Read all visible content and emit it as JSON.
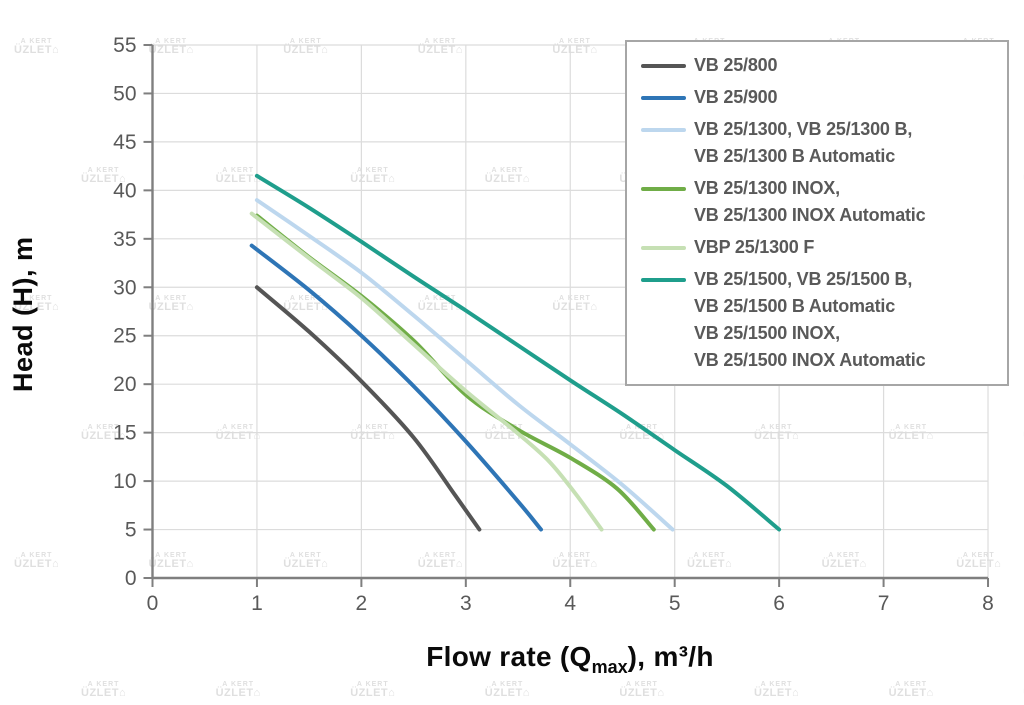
{
  "watermark": {
    "line1": "A KERT",
    "line2": "ÜZLET",
    "glyph": "⌂"
  },
  "axes": {
    "y_title": "Head (H), m",
    "x_title_pre": "Flow rate (Q",
    "x_title_sub": "max",
    "x_title_post": "), m³/h"
  },
  "chart_data": {
    "type": "line",
    "title": "",
    "xlabel": "Flow rate (Q_max), m³/h",
    "ylabel": "Head (H), m",
    "xlim": [
      0,
      8
    ],
    "ylim": [
      0,
      55
    ],
    "x_ticks": [
      0,
      1,
      2,
      3,
      4,
      5,
      6,
      7,
      8
    ],
    "y_ticks": [
      0,
      5,
      10,
      15,
      20,
      25,
      30,
      35,
      40,
      45,
      50,
      55
    ],
    "grid": true,
    "legend_position": "top-right",
    "series": [
      {
        "name": "VB 25/800",
        "color": "#555555",
        "legend_lines": [
          "VB 25/800"
        ],
        "points": [
          [
            1.0,
            30.0
          ],
          [
            1.5,
            25.4
          ],
          [
            2.0,
            20.3
          ],
          [
            2.5,
            14.5
          ],
          [
            2.9,
            8.5
          ],
          [
            3.13,
            5.0
          ]
        ]
      },
      {
        "name": "VB 25/900",
        "color": "#2e75b6",
        "legend_lines": [
          "VB 25/900"
        ],
        "points": [
          [
            0.95,
            34.3
          ],
          [
            1.5,
            29.7
          ],
          [
            2.0,
            25.0
          ],
          [
            2.5,
            19.8
          ],
          [
            3.0,
            14.1
          ],
          [
            3.5,
            7.9
          ],
          [
            3.72,
            5.0
          ]
        ]
      },
      {
        "name": "VB 25/1300, VB 25/1300 B, VB 25/1300 B Automatic",
        "color": "#bdd7ee",
        "legend_lines": [
          "VB 25/1300, VB 25/1300 B,",
          "VB 25/1300 B Automatic"
        ],
        "points": [
          [
            1.0,
            39.0
          ],
          [
            1.5,
            35.3
          ],
          [
            2.0,
            31.5
          ],
          [
            2.5,
            27.1
          ],
          [
            3.0,
            22.5
          ],
          [
            3.5,
            17.9
          ],
          [
            4.0,
            13.8
          ],
          [
            4.5,
            9.6
          ],
          [
            4.98,
            5.0
          ]
        ]
      },
      {
        "name": "VB 25/1300 INOX, VB 25/1300 INOX Automatic",
        "color": "#70ad47",
        "legend_lines": [
          "VB 25/1300 INOX,",
          "VB 25/1300 INOX Automatic"
        ],
        "points": [
          [
            1.0,
            37.4
          ],
          [
            1.5,
            33.1
          ],
          [
            2.0,
            29.1
          ],
          [
            2.5,
            24.5
          ],
          [
            3.0,
            18.9
          ],
          [
            3.5,
            15.3
          ],
          [
            4.0,
            12.4
          ],
          [
            4.45,
            9.2
          ],
          [
            4.8,
            5.0
          ]
        ]
      },
      {
        "name": "VBP 25/1300 F",
        "color": "#c6e0b4",
        "legend_lines": [
          "VBP 25/1300 F"
        ],
        "points": [
          [
            0.95,
            37.6
          ],
          [
            1.5,
            33.0
          ],
          [
            2.0,
            28.9
          ],
          [
            2.5,
            24.1
          ],
          [
            3.0,
            19.3
          ],
          [
            3.5,
            14.9
          ],
          [
            3.8,
            12.0
          ],
          [
            4.05,
            8.7
          ],
          [
            4.3,
            5.0
          ]
        ]
      },
      {
        "name": "VB 25/1500, VB 25/1500 B, VB 25/1500 B Automatic, VB 25/1500 INOX, VB 25/1500 INOX Automatic",
        "color": "#1f9e8c",
        "legend_lines": [
          "VB 25/1500, VB 25/1500 B,",
          "VB 25/1500 B Automatic",
          "VB 25/1500 INOX,",
          "VB 25/1500 INOX Automatic"
        ],
        "points": [
          [
            1.0,
            41.5
          ],
          [
            1.5,
            38.2
          ],
          [
            2.0,
            34.7
          ],
          [
            2.5,
            31.1
          ],
          [
            3.0,
            27.6
          ],
          [
            3.5,
            24.0
          ],
          [
            4.0,
            20.4
          ],
          [
            4.5,
            16.9
          ],
          [
            5.0,
            13.2
          ],
          [
            5.5,
            9.5
          ],
          [
            6.0,
            5.0
          ]
        ]
      }
    ]
  }
}
